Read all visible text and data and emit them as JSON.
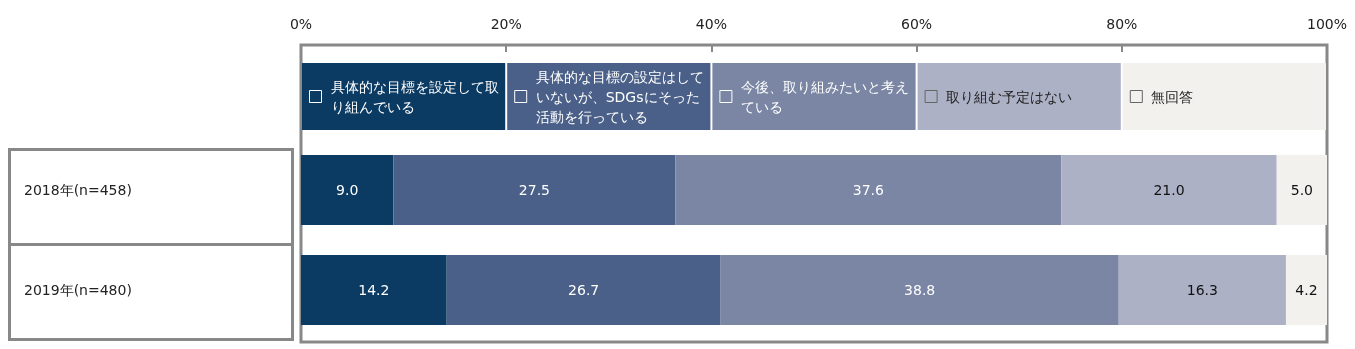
{
  "chart_data": {
    "type": "bar",
    "orientation": "horizontal",
    "stacked": true,
    "legend": "top",
    "grid": false,
    "categories": [
      "2018年(n=458)",
      "2019年(n=480)"
    ],
    "xlim": [
      0,
      100
    ],
    "xticks": [
      {
        "value": 0,
        "label": "0%"
      },
      {
        "value": 20,
        "label": "20%"
      },
      {
        "value": 40,
        "label": "40%"
      },
      {
        "value": 60,
        "label": "60%"
      },
      {
        "value": 80,
        "label": "80%"
      },
      {
        "value": 100,
        "label": "100%"
      }
    ],
    "series": [
      {
        "name": "具体的な目標を設定して取り組んでいる",
        "color": "#0b3a62",
        "values": [
          9.0,
          14.2
        ],
        "value_labels": [
          "9.0",
          "14.2"
        ]
      },
      {
        "name": "具体的な目標の設定はしていないが、SDGsにそった活動を行っている",
        "color": "#4a6088",
        "values": [
          27.5,
          26.7
        ],
        "value_labels": [
          "27.5",
          "26.7"
        ]
      },
      {
        "name": "今後、取り組みたいと考えている",
        "color": "#7a86a3",
        "values": [
          37.6,
          38.8
        ],
        "value_labels": [
          "37.6",
          "38.8"
        ]
      },
      {
        "name": "取り組む予定はない",
        "color": "#adb1c6",
        "values": [
          21.0,
          16.3
        ],
        "value_labels": [
          "21.0",
          "16.3"
        ]
      },
      {
        "name": "無回答",
        "color": "#f3f1ee",
        "values": [
          5.0,
          4.2
        ],
        "value_labels": [
          "5.0",
          "4.2"
        ]
      }
    ]
  }
}
